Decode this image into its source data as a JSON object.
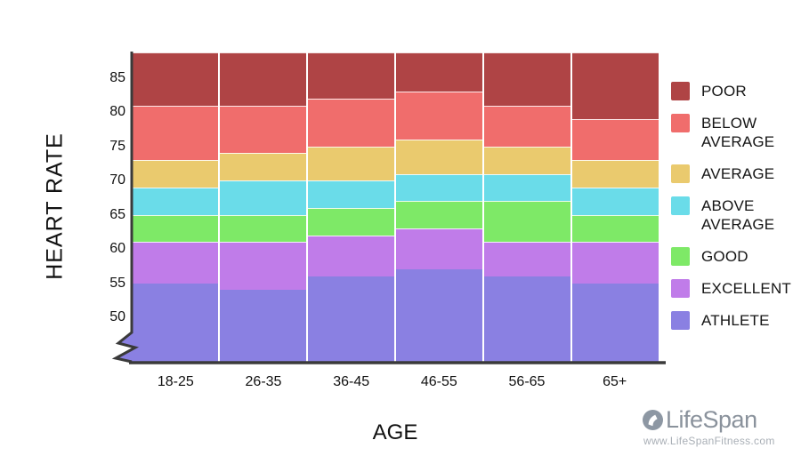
{
  "chart_data": {
    "type": "bar",
    "subtype": "stacked-zone-bands",
    "title": "",
    "xlabel": "AGE",
    "ylabel": "HEART RATE",
    "categories": [
      "18-25",
      "26-35",
      "36-45",
      "46-55",
      "56-65",
      "65+"
    ],
    "y_ticks": [
      85,
      80,
      75,
      70,
      65,
      60,
      55,
      50
    ],
    "ylim": [
      43.25,
      88.75
    ],
    "y_axis_break_below": 50,
    "grid": false,
    "legend_position": "right",
    "series": [
      {
        "name": "ATHLETE",
        "color": "#8a80e2",
        "upper_bounds": [
          55,
          54,
          56,
          57,
          56,
          55
        ],
        "note": "band extends below axis break"
      },
      {
        "name": "EXCELLENT",
        "color": "#c07ce9",
        "upper_bounds": [
          61,
          61,
          62,
          63,
          61,
          61
        ]
      },
      {
        "name": "GOOD",
        "color": "#7ee967",
        "upper_bounds": [
          65,
          65,
          66,
          67,
          67,
          65
        ]
      },
      {
        "name": "ABOVE AVERAGE",
        "color": "#6adce9",
        "upper_bounds": [
          69,
          70,
          70,
          71,
          71,
          69
        ]
      },
      {
        "name": "AVERAGE",
        "color": "#eaca6e",
        "upper_bounds": [
          73,
          74,
          75,
          76,
          75,
          73
        ]
      },
      {
        "name": "BELOW AVERAGE",
        "color": "#f06d6c",
        "upper_bounds": [
          81,
          81,
          82,
          83,
          81,
          79
        ]
      },
      {
        "name": "POOR",
        "color": "#af4445",
        "upper_bounds": null,
        "open_ended": true
      }
    ]
  },
  "branding": {
    "logo_text": "LifeSpan",
    "website": "www.LifeSpanFitness.com"
  }
}
